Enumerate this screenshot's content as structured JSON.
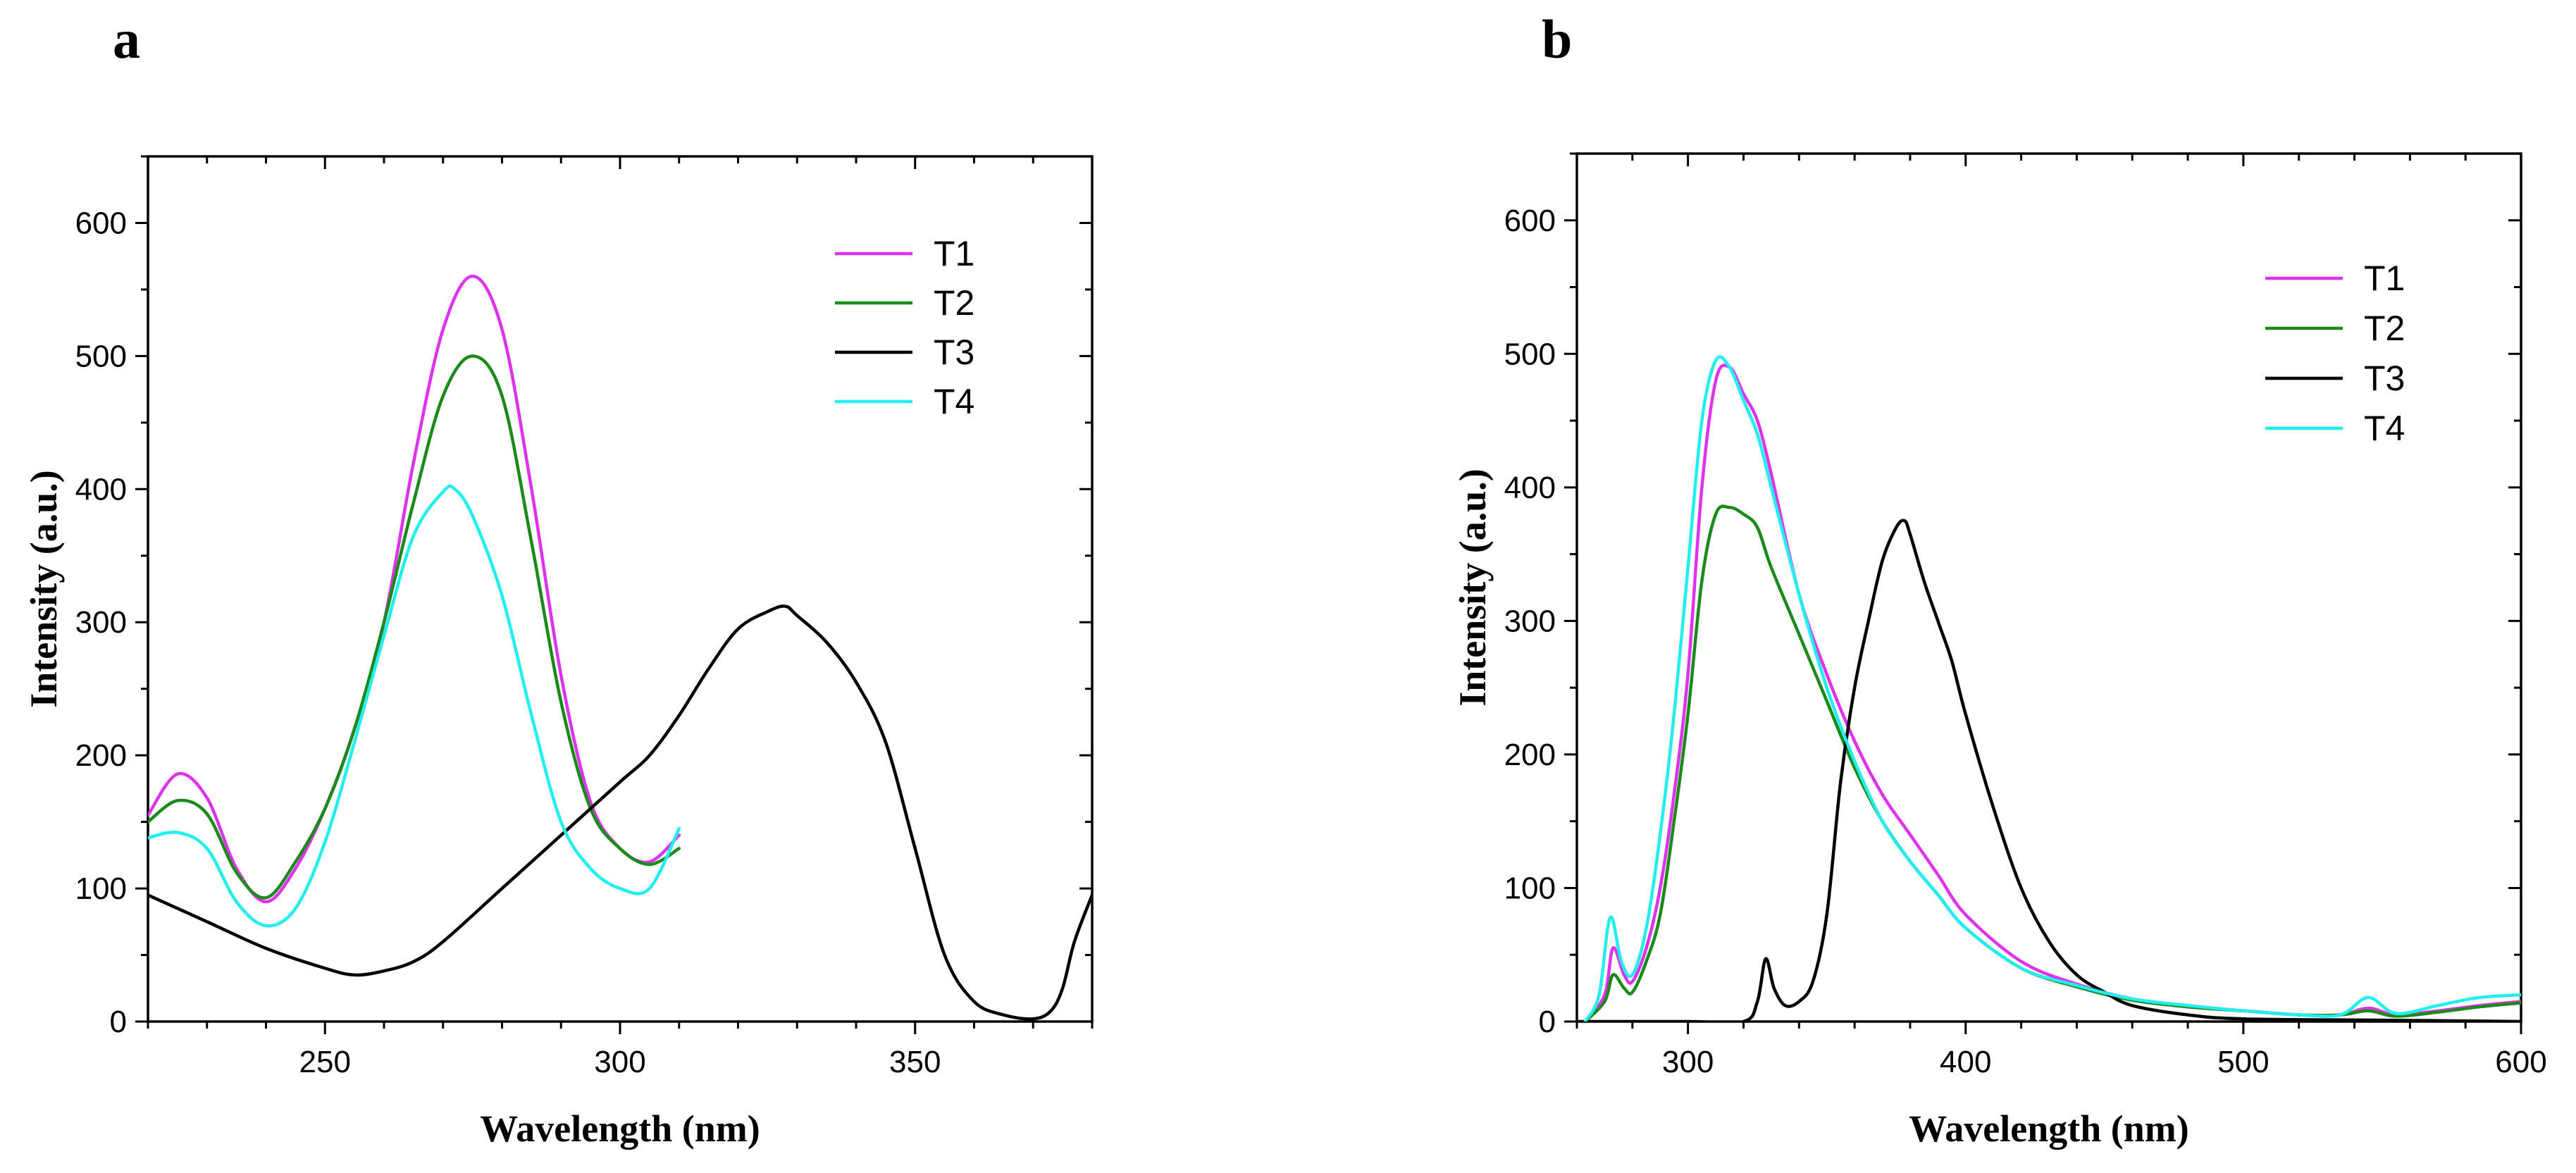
{
  "chart_data": [
    {
      "panel": "a",
      "type": "line",
      "xlabel": "Wavelength (nm)",
      "ylabel": "Intensity (a.u.)",
      "xlim": [
        220,
        380
      ],
      "ylim": [
        0,
        650
      ],
      "xticks": [
        250,
        300,
        350
      ],
      "yticks": [
        0,
        100,
        200,
        300,
        400,
        500,
        600
      ],
      "legend_position": "top-right",
      "series": [
        {
          "name": "T1",
          "color": "#dd33ee",
          "x": [
            220,
            225,
            230,
            235,
            240,
            245,
            250,
            255,
            260,
            265,
            270,
            275,
            280,
            285,
            290,
            295,
            300,
            305,
            310
          ],
          "y": [
            155,
            186,
            168,
            115,
            90,
            115,
            160,
            220,
            300,
            420,
            520,
            560,
            520,
            400,
            260,
            165,
            130,
            120,
            140
          ]
        },
        {
          "name": "T2",
          "color": "#1a8a1a",
          "x": [
            220,
            225,
            230,
            235,
            240,
            245,
            250,
            255,
            260,
            265,
            270,
            275,
            280,
            285,
            290,
            295,
            300,
            305,
            310
          ],
          "y": [
            150,
            166,
            156,
            112,
            93,
            120,
            160,
            220,
            300,
            390,
            470,
            500,
            470,
            360,
            240,
            160,
            130,
            118,
            130
          ]
        },
        {
          "name": "T3",
          "color": "#000000",
          "x": [
            220,
            230,
            240,
            250,
            255,
            260,
            265,
            270,
            280,
            290,
            300,
            305,
            310,
            315,
            320,
            325,
            328,
            330,
            335,
            340,
            345,
            350,
            355,
            360,
            365,
            370,
            373,
            375,
            377,
            380
          ],
          "y": [
            95,
            75,
            55,
            40,
            35,
            38,
            45,
            60,
            100,
            140,
            180,
            200,
            230,
            265,
            295,
            308,
            312,
            305,
            285,
            255,
            210,
            130,
            50,
            15,
            5,
            2,
            8,
            25,
            60,
            95
          ]
        },
        {
          "name": "T4",
          "color": "#22eeee",
          "x": [
            220,
            225,
            230,
            235,
            240,
            245,
            250,
            255,
            260,
            265,
            270,
            272,
            275,
            280,
            285,
            290,
            295,
            300,
            305,
            310
          ],
          "y": [
            138,
            142,
            130,
            90,
            72,
            85,
            135,
            210,
            290,
            365,
            398,
            400,
            380,
            320,
            230,
            150,
            115,
            100,
            100,
            145
          ]
        }
      ]
    },
    {
      "panel": "b",
      "type": "line",
      "xlabel": "Wavelength (nm)",
      "ylabel": "Intensity (a.u.)",
      "xlim": [
        260,
        600
      ],
      "ylim": [
        0,
        650
      ],
      "xticks": [
        300,
        400,
        500,
        600
      ],
      "yticks": [
        0,
        100,
        200,
        300,
        400,
        500,
        600
      ],
      "legend_position": "top-right",
      "series": [
        {
          "name": "T1",
          "color": "#dd33ee",
          "x": [
            263,
            270,
            273,
            277,
            280,
            285,
            290,
            295,
            300,
            305,
            310,
            315,
            320,
            325,
            330,
            340,
            350,
            360,
            370,
            380,
            390,
            400,
            420,
            440,
            460,
            480,
            500,
            520,
            535,
            545,
            555,
            570,
            585,
            600
          ],
          "y": [
            0,
            20,
            55,
            35,
            30,
            55,
            100,
            170,
            260,
            400,
            480,
            490,
            470,
            450,
            410,
            320,
            260,
            210,
            170,
            140,
            110,
            80,
            45,
            28,
            17,
            12,
            8,
            5,
            5,
            10,
            5,
            8,
            12,
            15
          ]
        },
        {
          "name": "T2",
          "color": "#1a8a1a",
          "x": [
            263,
            270,
            273,
            277,
            280,
            285,
            290,
            295,
            300,
            305,
            310,
            315,
            320,
            325,
            330,
            340,
            350,
            360,
            370,
            380,
            390,
            400,
            420,
            440,
            460,
            480,
            500,
            520,
            535,
            545,
            555,
            570,
            585,
            600
          ],
          "y": [
            0,
            15,
            35,
            25,
            22,
            45,
            80,
            150,
            230,
            330,
            380,
            385,
            380,
            370,
            340,
            290,
            240,
            190,
            150,
            120,
            95,
            70,
            40,
            26,
            16,
            11,
            8,
            5,
            5,
            8,
            4,
            7,
            11,
            14
          ]
        },
        {
          "name": "T3",
          "color": "#000000",
          "x": [
            260,
            300,
            320,
            325,
            328,
            331,
            335,
            340,
            345,
            350,
            355,
            360,
            365,
            370,
            375,
            378,
            380,
            385,
            390,
            395,
            400,
            410,
            420,
            430,
            440,
            450,
            460,
            480,
            500,
            550,
            600
          ],
          "y": [
            0,
            0,
            0,
            15,
            47,
            25,
            12,
            15,
            30,
            80,
            180,
            250,
            300,
            345,
            370,
            375,
            365,
            330,
            300,
            270,
            230,
            160,
            100,
            60,
            35,
            22,
            12,
            5,
            2,
            1,
            0
          ]
        },
        {
          "name": "T4",
          "color": "#22eeee",
          "x": [
            263,
            268,
            272,
            276,
            280,
            285,
            290,
            295,
            300,
            305,
            310,
            315,
            320,
            325,
            330,
            340,
            350,
            360,
            370,
            380,
            390,
            400,
            420,
            440,
            460,
            480,
            500,
            520,
            535,
            545,
            555,
            570,
            585,
            600
          ],
          "y": [
            0,
            20,
            78,
            45,
            35,
            70,
            140,
            230,
            340,
            450,
            495,
            490,
            465,
            440,
            400,
            320,
            250,
            195,
            150,
            120,
            95,
            70,
            40,
            27,
            17,
            12,
            8,
            5,
            5,
            18,
            6,
            12,
            18,
            20
          ]
        }
      ]
    }
  ]
}
